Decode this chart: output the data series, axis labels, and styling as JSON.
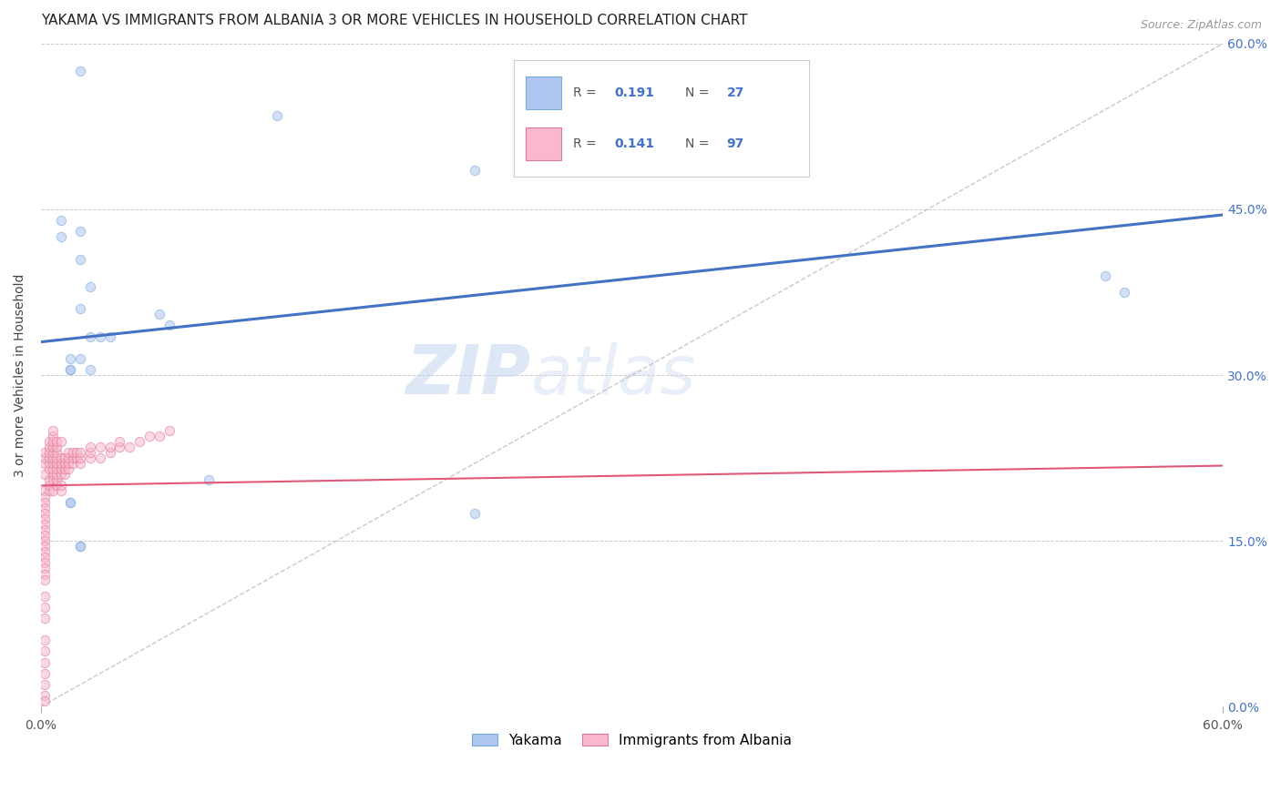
{
  "title": "YAKAMA VS IMMIGRANTS FROM ALBANIA 3 OR MORE VEHICLES IN HOUSEHOLD CORRELATION CHART",
  "source": "Source: ZipAtlas.com",
  "ylabel": "3 or more Vehicles in Household",
  "xmin": 0.0,
  "xmax": 0.6,
  "ymin": 0.0,
  "ymax": 0.6,
  "yticks": [
    0.0,
    0.15,
    0.3,
    0.45,
    0.6
  ],
  "ytick_labels": [
    "0.0%",
    "15.0%",
    "30.0%",
    "45.0%",
    "60.0%"
  ],
  "watermark_line1": "ZIP",
  "watermark_line2": "atlas",
  "yakama_scatter_x": [
    0.01,
    0.02,
    0.02,
    0.025,
    0.025,
    0.01,
    0.015,
    0.02,
    0.025,
    0.03,
    0.02,
    0.035,
    0.015,
    0.015,
    0.015,
    0.015,
    0.06,
    0.065,
    0.085,
    0.22,
    0.54,
    0.55,
    0.02,
    0.12,
    0.22,
    0.02,
    0.02
  ],
  "yakama_scatter_y": [
    0.44,
    0.43,
    0.405,
    0.38,
    0.335,
    0.425,
    0.315,
    0.315,
    0.305,
    0.335,
    0.36,
    0.335,
    0.305,
    0.305,
    0.185,
    0.185,
    0.355,
    0.345,
    0.205,
    0.175,
    0.39,
    0.375,
    0.575,
    0.535,
    0.485,
    0.145,
    0.145
  ],
  "albania_scatter_x": [
    0.002,
    0.002,
    0.002,
    0.002,
    0.002,
    0.002,
    0.002,
    0.002,
    0.002,
    0.002,
    0.002,
    0.002,
    0.002,
    0.002,
    0.002,
    0.002,
    0.002,
    0.002,
    0.002,
    0.002,
    0.002,
    0.002,
    0.002,
    0.002,
    0.002,
    0.002,
    0.002,
    0.002,
    0.002,
    0.002,
    0.002,
    0.004,
    0.004,
    0.004,
    0.004,
    0.004,
    0.004,
    0.004,
    0.004,
    0.004,
    0.006,
    0.006,
    0.006,
    0.006,
    0.006,
    0.006,
    0.006,
    0.006,
    0.006,
    0.006,
    0.006,
    0.008,
    0.008,
    0.008,
    0.008,
    0.008,
    0.008,
    0.008,
    0.008,
    0.008,
    0.01,
    0.01,
    0.01,
    0.01,
    0.01,
    0.01,
    0.01,
    0.012,
    0.012,
    0.012,
    0.012,
    0.014,
    0.014,
    0.014,
    0.014,
    0.016,
    0.016,
    0.016,
    0.018,
    0.018,
    0.02,
    0.02,
    0.02,
    0.025,
    0.025,
    0.025,
    0.03,
    0.03,
    0.035,
    0.035,
    0.04,
    0.04,
    0.045,
    0.05,
    0.055,
    0.06,
    0.065
  ],
  "albania_scatter_y": [
    0.195,
    0.19,
    0.185,
    0.18,
    0.175,
    0.17,
    0.165,
    0.16,
    0.155,
    0.15,
    0.145,
    0.14,
    0.135,
    0.13,
    0.125,
    0.12,
    0.115,
    0.1,
    0.09,
    0.08,
    0.06,
    0.05,
    0.04,
    0.03,
    0.02,
    0.01,
    0.005,
    0.21,
    0.22,
    0.225,
    0.23,
    0.195,
    0.2,
    0.205,
    0.215,
    0.22,
    0.225,
    0.23,
    0.235,
    0.24,
    0.195,
    0.205,
    0.21,
    0.215,
    0.22,
    0.225,
    0.23,
    0.235,
    0.24,
    0.245,
    0.25,
    0.2,
    0.205,
    0.21,
    0.215,
    0.22,
    0.225,
    0.23,
    0.235,
    0.24,
    0.195,
    0.2,
    0.21,
    0.215,
    0.22,
    0.225,
    0.24,
    0.21,
    0.215,
    0.22,
    0.225,
    0.215,
    0.22,
    0.225,
    0.23,
    0.22,
    0.225,
    0.23,
    0.225,
    0.23,
    0.22,
    0.225,
    0.23,
    0.225,
    0.23,
    0.235,
    0.225,
    0.235,
    0.23,
    0.235,
    0.235,
    0.24,
    0.235,
    0.24,
    0.245,
    0.245,
    0.25
  ],
  "yakama_line_color": "#4472c4",
  "albania_line_color": "#e05878",
  "yakama_line_x": [
    0.0,
    0.6
  ],
  "yakama_line_y": [
    0.33,
    0.445
  ],
  "albania_line_x": [
    0.0,
    0.6
  ],
  "albania_line_y": [
    0.2,
    0.218
  ],
  "diagonal_line_x": [
    0.0,
    0.6
  ],
  "diagonal_line_y": [
    0.0,
    0.6
  ],
  "diagonal_color": "#bbbbbb",
  "scatter_alpha": 0.55,
  "scatter_size": 55,
  "yakama_marker_color": "#aec6f0",
  "yakama_marker_edge": "#7aaad8",
  "albania_marker_color": "#f9b8cb",
  "albania_marker_edge": "#e07898",
  "grid_color": "#cccccc",
  "background_color": "#ffffff",
  "title_fontsize": 11,
  "axis_label_fontsize": 10,
  "tick_fontsize": 10,
  "right_tick_color": "#4472c4",
  "bottom_legend_labels": [
    "Yakama",
    "Immigrants from Albania"
  ],
  "legend_yakama_r": "0.191",
  "legend_yakama_n": "27",
  "legend_albania_r": "0.141",
  "legend_albania_n": "97"
}
